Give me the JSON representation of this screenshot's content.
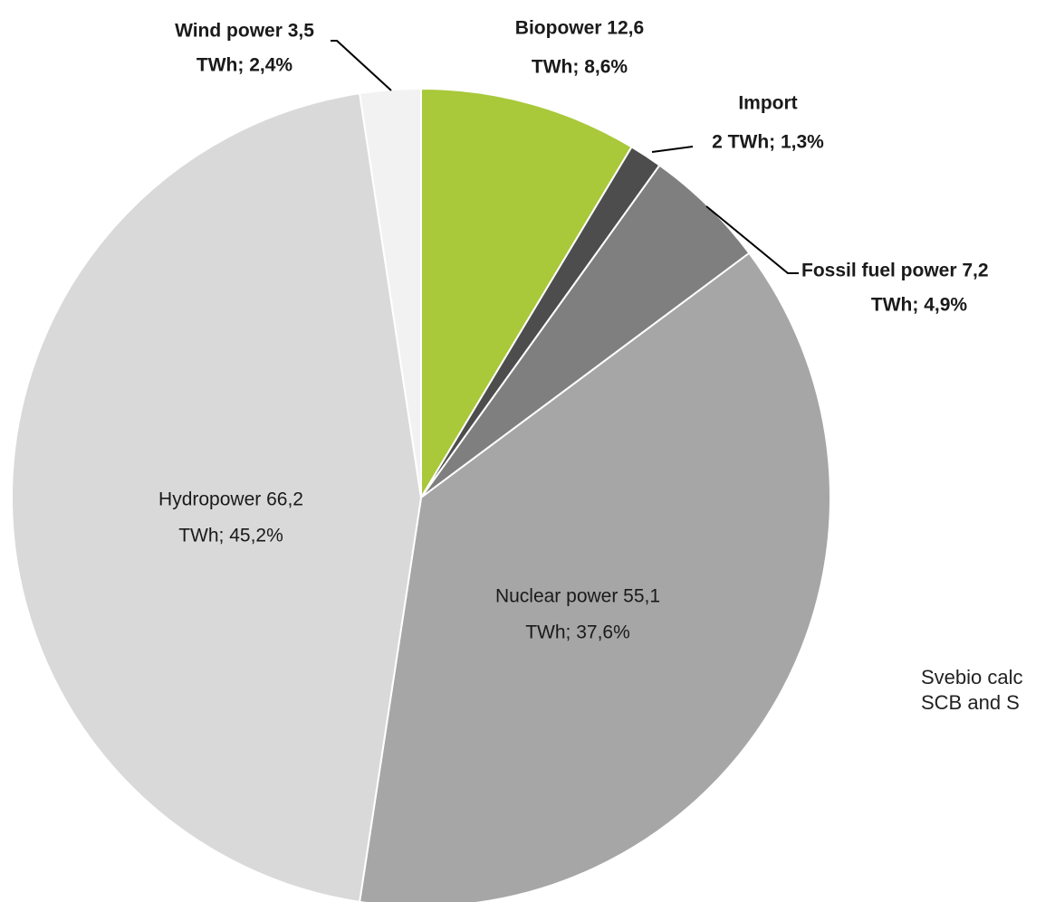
{
  "chart_data": {
    "type": "pie",
    "categories": [
      "Biopower",
      "Import",
      "Fossil fuel power",
      "Nuclear power",
      "Hydropower",
      "Wind power"
    ],
    "values": [
      8.6,
      1.3,
      4.9,
      37.6,
      45.2,
      2.4
    ],
    "value_labels": [
      [
        "Biopower 12,6",
        "TWh; 8,6%"
      ],
      [
        "Import",
        "2 TWh; 1,3%"
      ],
      [
        "Fossil fuel power 7,2",
        "TWh; 4,9%"
      ],
      [
        "Nuclear power 55,1",
        "TWh; 37,6%"
      ],
      [
        "Hydropower 66,2",
        "TWh; 45,2%"
      ],
      [
        "Wind power 3,5",
        "TWh; 2,4%"
      ]
    ],
    "colors": [
      "#a9c83a",
      "#4d4d4d",
      "#7f7f7f",
      "#a6a6a6",
      "#d9d9d9",
      "#f2f2f2"
    ],
    "source": [
      "Svebio calc",
      "SCB and S"
    ]
  }
}
